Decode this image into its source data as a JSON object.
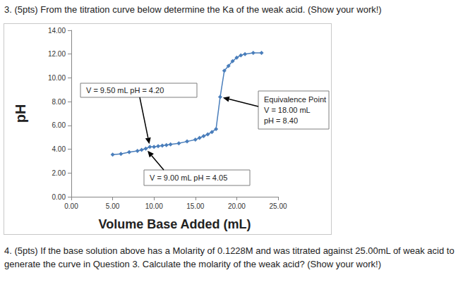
{
  "question_3": "3. (5pts) From the titration curve below determine the Ka of the weak acid. (Show your work!)",
  "chart_data": {
    "type": "line",
    "marker": "diamond",
    "line_style": "solid",
    "color": "#4a7ebb",
    "grid": false,
    "xlabel": "Volume Base Added (mL)",
    "ylabel": "pH",
    "x": [
      5,
      6,
      7,
      8,
      8.5,
      9,
      9.5,
      10,
      10.5,
      11,
      11.5,
      12,
      13,
      14,
      15,
      15.5,
      16,
      16.5,
      17,
      17.5,
      18,
      18.5,
      19,
      19.5,
      20,
      20.5,
      21,
      22,
      23
    ],
    "values": [
      3.55,
      3.6,
      3.75,
      3.85,
      3.95,
      4.05,
      4.2,
      4.2,
      4.25,
      4.3,
      4.35,
      4.4,
      4.5,
      4.65,
      4.8,
      4.95,
      5.1,
      5.25,
      5.45,
      5.7,
      8.4,
      10.6,
      11.0,
      11.4,
      11.7,
      11.9,
      12.0,
      12.1,
      12.1
    ],
    "xlim": [
      0,
      25
    ],
    "xticks": [
      {
        "value": 0,
        "label": "0.00"
      },
      {
        "value": 5,
        "label": "5.00"
      },
      {
        "value": 10,
        "label": "10.00"
      },
      {
        "value": 15,
        "label": "15.00"
      },
      {
        "value": 20,
        "label": "20.00"
      },
      {
        "value": 25,
        "label": "25.00"
      }
    ],
    "ylim": [
      0,
      14
    ],
    "yticks": [
      {
        "value": 0,
        "label": "0.00"
      },
      {
        "value": 2,
        "label": "2.00"
      },
      {
        "value": 4,
        "label": "4.00"
      },
      {
        "value": 6,
        "label": "6.00"
      },
      {
        "value": 8,
        "label": "8.00"
      },
      {
        "value": 10,
        "label": "10.00"
      },
      {
        "value": 12,
        "label": "12.00"
      },
      {
        "value": 14,
        "label": "14.00"
      }
    ],
    "annotations": [
      {
        "text": [
          "V = 9.50 mL pH = 4.20"
        ],
        "x": 9.5,
        "y": 4.2
      },
      {
        "text": [
          "V = 9.00 mL pH = 4.05"
        ],
        "x": 9,
        "y": 4.05
      },
      {
        "text": [
          "Equivalence Point",
          "V = 18.00 mL",
          "pH = 8.40"
        ],
        "x": 18,
        "y": 8.4
      }
    ]
  },
  "question_4": "4. (5pts) If the base solution above has a Molarity of 0.1228M and was titrated against 25.00mL of weak acid to generate the curve in Question 3. Calculate the molarity of the weak acid? (Show your work!)"
}
